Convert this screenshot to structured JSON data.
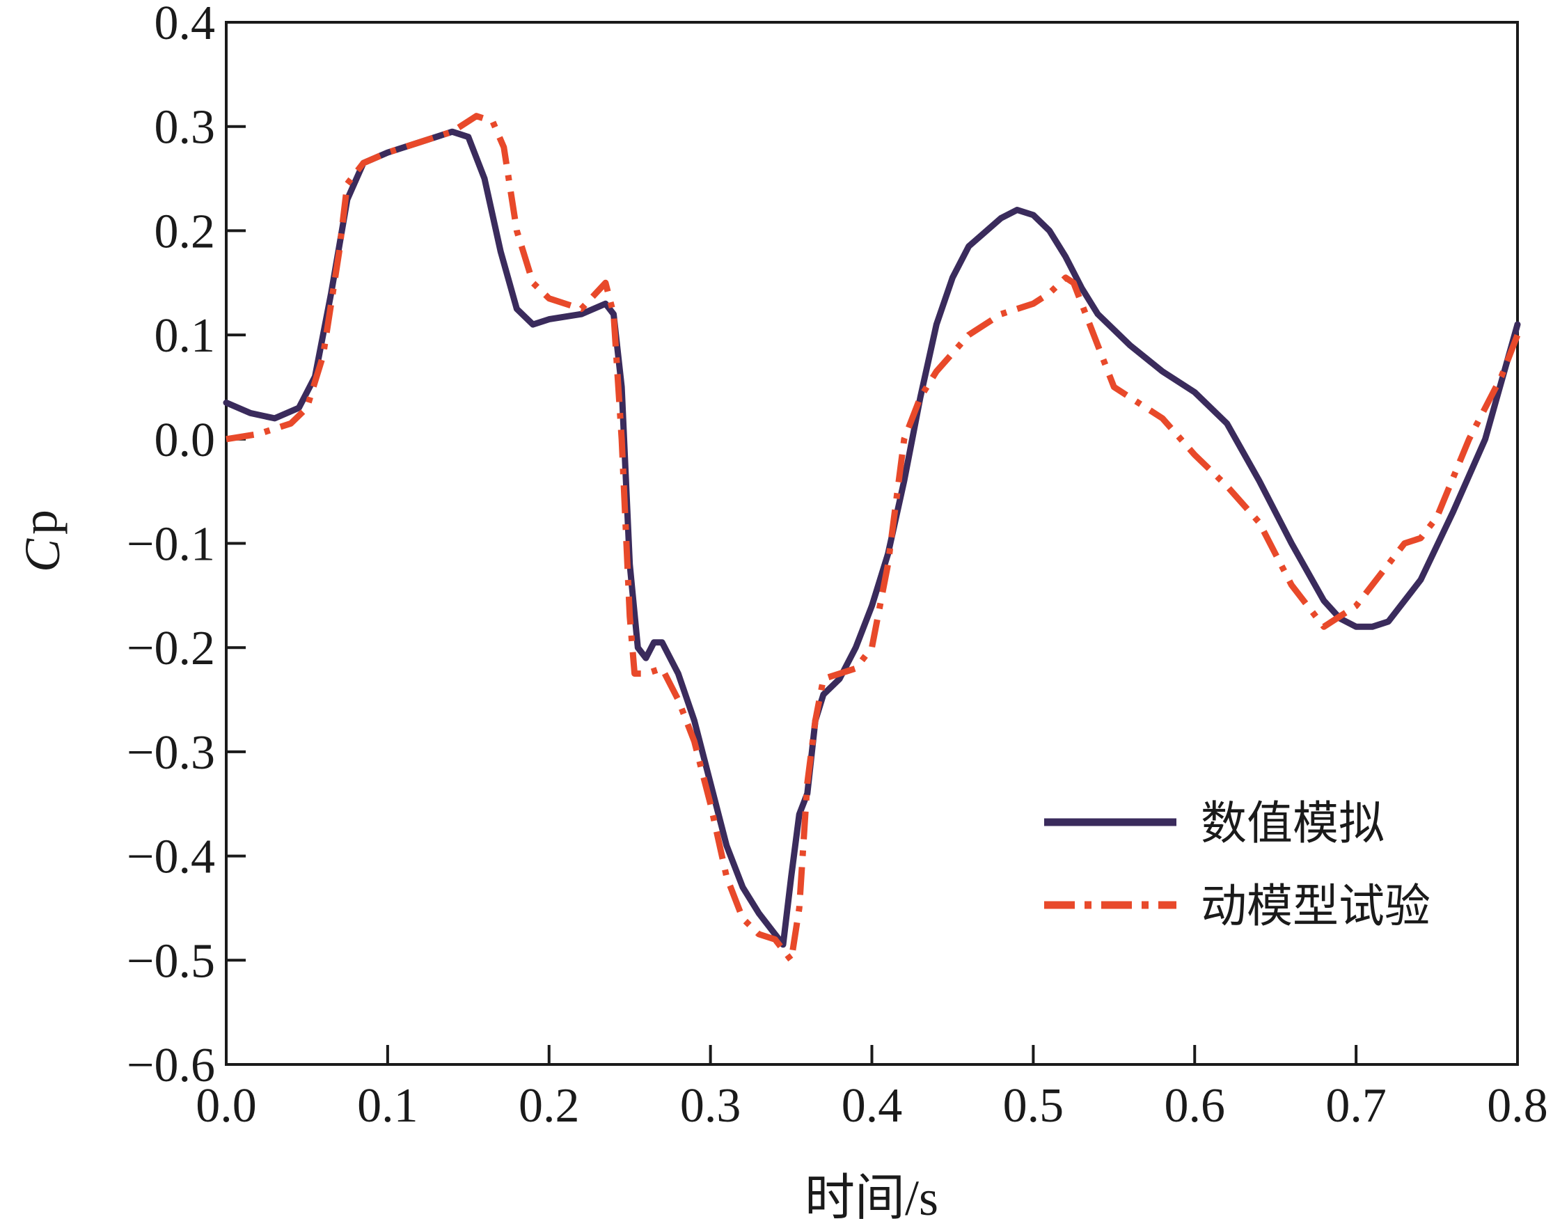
{
  "chart_data": {
    "type": "line",
    "xlabel": "时间/s",
    "ylabel_main": "C",
    "ylabel_sub": "p",
    "xlim": [
      0.0,
      0.8
    ],
    "ylim": [
      -0.6,
      0.4
    ],
    "xticks": [
      "0.0",
      "0.1",
      "0.2",
      "0.3",
      "0.4",
      "0.5",
      "0.6",
      "0.7",
      "0.8"
    ],
    "yticks": [
      "0.4",
      "0.3",
      "0.2",
      "0.1",
      "0.0",
      "−0.1",
      "−0.2",
      "−0.3",
      "−0.4",
      "−0.5",
      "−0.6"
    ],
    "grid": false,
    "legend_position": "bottom-right",
    "series": [
      {
        "name": "数值模拟",
        "color": "#3a2b5c",
        "style": "solid",
        "x": [
          0.0,
          0.015,
          0.03,
          0.045,
          0.055,
          0.065,
          0.075,
          0.085,
          0.1,
          0.12,
          0.14,
          0.15,
          0.16,
          0.17,
          0.18,
          0.19,
          0.2,
          0.22,
          0.235,
          0.24,
          0.245,
          0.25,
          0.255,
          0.26,
          0.265,
          0.27,
          0.28,
          0.29,
          0.3,
          0.31,
          0.32,
          0.33,
          0.34,
          0.345,
          0.35,
          0.355,
          0.36,
          0.365,
          0.37,
          0.38,
          0.39,
          0.4,
          0.41,
          0.42,
          0.43,
          0.44,
          0.45,
          0.46,
          0.48,
          0.49,
          0.5,
          0.51,
          0.52,
          0.53,
          0.54,
          0.56,
          0.58,
          0.6,
          0.62,
          0.64,
          0.66,
          0.68,
          0.69,
          0.7,
          0.71,
          0.72,
          0.74,
          0.76,
          0.78,
          0.8
        ],
        "y": [
          0.035,
          0.025,
          0.02,
          0.03,
          0.06,
          0.14,
          0.23,
          0.265,
          0.275,
          0.285,
          0.295,
          0.29,
          0.25,
          0.18,
          0.125,
          0.11,
          0.115,
          0.12,
          0.13,
          0.12,
          0.05,
          -0.12,
          -0.2,
          -0.21,
          -0.195,
          -0.195,
          -0.225,
          -0.27,
          -0.33,
          -0.39,
          -0.43,
          -0.455,
          -0.475,
          -0.485,
          -0.42,
          -0.36,
          -0.34,
          -0.27,
          -0.245,
          -0.23,
          -0.2,
          -0.16,
          -0.11,
          -0.04,
          0.04,
          0.11,
          0.155,
          0.185,
          0.212,
          0.22,
          0.215,
          0.2,
          0.175,
          0.145,
          0.12,
          0.09,
          0.065,
          0.045,
          0.015,
          -0.04,
          -0.1,
          -0.155,
          -0.172,
          -0.18,
          -0.18,
          -0.175,
          -0.135,
          -0.07,
          0.0,
          0.11
        ]
      },
      {
        "name": "动模型试验",
        "color": "#e8492a",
        "style": "dashdot",
        "x": [
          0.0,
          0.02,
          0.04,
          0.05,
          0.06,
          0.07,
          0.075,
          0.085,
          0.1,
          0.12,
          0.14,
          0.155,
          0.165,
          0.172,
          0.18,
          0.19,
          0.2,
          0.22,
          0.235,
          0.24,
          0.245,
          0.25,
          0.253,
          0.26,
          0.27,
          0.28,
          0.29,
          0.3,
          0.31,
          0.32,
          0.33,
          0.34,
          0.35,
          0.355,
          0.36,
          0.365,
          0.37,
          0.38,
          0.39,
          0.4,
          0.41,
          0.42,
          0.43,
          0.44,
          0.46,
          0.48,
          0.5,
          0.51,
          0.52,
          0.525,
          0.53,
          0.54,
          0.55,
          0.58,
          0.6,
          0.62,
          0.64,
          0.66,
          0.68,
          0.69,
          0.7,
          0.71,
          0.73,
          0.74,
          0.75,
          0.77,
          0.79,
          0.8
        ],
        "y": [
          0.0,
          0.005,
          0.015,
          0.03,
          0.08,
          0.18,
          0.245,
          0.265,
          0.275,
          0.285,
          0.295,
          0.31,
          0.305,
          0.28,
          0.2,
          0.15,
          0.135,
          0.125,
          0.15,
          0.12,
          0.0,
          -0.17,
          -0.225,
          -0.225,
          -0.22,
          -0.25,
          -0.29,
          -0.35,
          -0.42,
          -0.46,
          -0.475,
          -0.48,
          -0.5,
          -0.45,
          -0.33,
          -0.27,
          -0.23,
          -0.225,
          -0.22,
          -0.2,
          -0.12,
          0.0,
          0.04,
          0.065,
          0.1,
          0.12,
          0.13,
          0.14,
          0.155,
          0.15,
          0.13,
          0.09,
          0.05,
          0.02,
          -0.015,
          -0.045,
          -0.08,
          -0.14,
          -0.18,
          -0.17,
          -0.16,
          -0.14,
          -0.1,
          -0.095,
          -0.075,
          0.0,
          0.06,
          0.1
        ]
      }
    ]
  }
}
